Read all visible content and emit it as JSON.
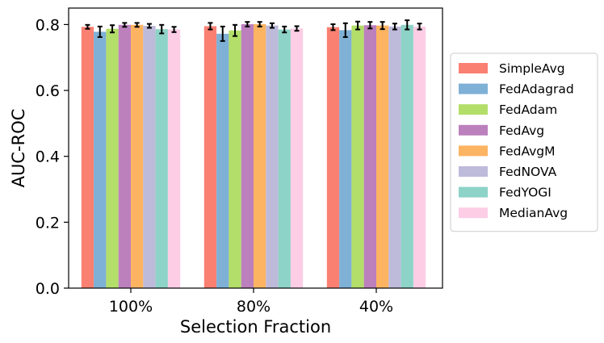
{
  "chart_data": {
    "type": "bar",
    "title": "",
    "xlabel": "Selection Fraction",
    "ylabel": "AUC-ROC",
    "ylim": [
      0,
      0.85
    ],
    "yticks": [
      "0.0",
      "0.2",
      "0.4",
      "0.6",
      "0.8"
    ],
    "grid": false,
    "legend_position": "right",
    "categories": [
      "100%",
      "80%",
      "40%"
    ],
    "series": [
      {
        "name": "SimpleAvg",
        "color": "#fa8072",
        "values": [
          0.793,
          0.795,
          0.792
        ],
        "errors": [
          0.006,
          0.01,
          0.009
        ]
      },
      {
        "name": "FedAdagrad",
        "color": "#7fb0d5",
        "values": [
          0.778,
          0.772,
          0.783
        ],
        "errors": [
          0.016,
          0.022,
          0.021
        ]
      },
      {
        "name": "FedAdam",
        "color": "#b3de69",
        "values": [
          0.787,
          0.782,
          0.797
        ],
        "errors": [
          0.011,
          0.017,
          0.012
        ]
      },
      {
        "name": "FedAvg",
        "color": "#bc80bd",
        "values": [
          0.799,
          0.801,
          0.798
        ],
        "errors": [
          0.006,
          0.007,
          0.01
        ]
      },
      {
        "name": "FedAvgM",
        "color": "#fdb462",
        "values": [
          0.799,
          0.801,
          0.797
        ],
        "errors": [
          0.006,
          0.007,
          0.011
        ]
      },
      {
        "name": "FedNOVA",
        "color": "#bebada",
        "values": [
          0.796,
          0.797,
          0.794
        ],
        "errors": [
          0.006,
          0.007,
          0.009
        ]
      },
      {
        "name": "FedYOGI",
        "color": "#8dd3c7",
        "values": [
          0.786,
          0.785,
          0.799
        ],
        "errors": [
          0.013,
          0.009,
          0.014
        ]
      },
      {
        "name": "MedianAvg",
        "color": "#fccde5",
        "values": [
          0.785,
          0.788,
          0.794
        ],
        "errors": [
          0.008,
          0.007,
          0.009
        ]
      }
    ]
  }
}
